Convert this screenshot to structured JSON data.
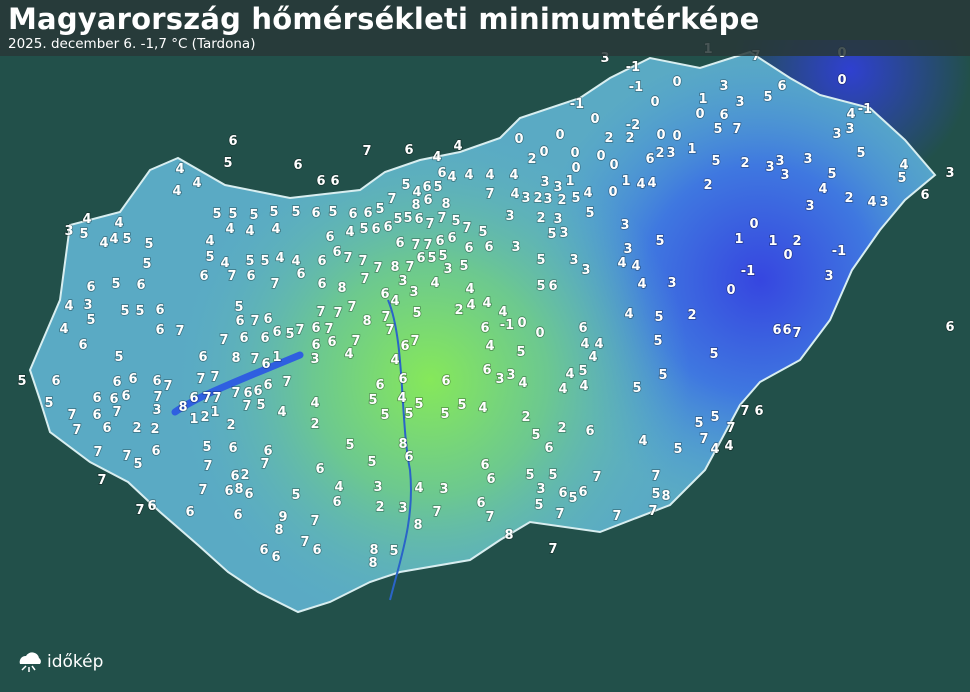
{
  "header": {
    "title": "Magyarország hőmérsékleti minimumtérképe",
    "subtitle": "2025. december 6.  -1,7 °C (Tardona)"
  },
  "logo": {
    "text": "időkép",
    "icon": "cloud-sun-icon"
  },
  "colors": {
    "background": "#1f4a44",
    "warm": "#7fe05a",
    "mid": "#5fb8c8",
    "cold": "#3a4fe0",
    "label": "#ffffff"
  },
  "stations": [
    "3",
    "1",
    "7",
    "0",
    "0",
    "-1",
    "-1",
    "0",
    "3",
    "5",
    "6",
    "-1",
    "0",
    "0",
    "1",
    "0",
    "6",
    "3",
    "4",
    "-1",
    "0",
    "0",
    "-2",
    "2",
    "2",
    "0",
    "0",
    "5",
    "7",
    "3",
    "3",
    "5",
    "4",
    "6",
    "4",
    "7",
    "2",
    "0",
    "0",
    "0",
    "0",
    "0",
    "6",
    "2",
    "3",
    "1",
    "5",
    "2",
    "3",
    "3",
    "3",
    "3",
    "5",
    "4",
    "5",
    "3",
    "6",
    "6",
    "5",
    "6",
    "6",
    "6",
    "4",
    "4",
    "4",
    "6",
    "4",
    "4",
    "4",
    "4",
    "5",
    "4",
    "6",
    "5",
    "3",
    "3",
    "1",
    "4",
    "0",
    "1",
    "4",
    "4",
    "2",
    "4",
    "2",
    "4",
    "3",
    "5",
    "5",
    "5",
    "5",
    "5",
    "6",
    "5",
    "6",
    "6",
    "5",
    "7",
    "8",
    "6",
    "8",
    "7",
    "4",
    "3",
    "2",
    "3",
    "2",
    "5",
    "5",
    "3",
    "2",
    "3",
    "3",
    "3",
    "4",
    "4",
    "3",
    "5",
    "4",
    "4",
    "5",
    "5",
    "4",
    "4",
    "4",
    "4",
    "6",
    "4",
    "5",
    "6",
    "6",
    "5",
    "5",
    "6",
    "7",
    "7",
    "5",
    "7",
    "5",
    "5",
    "3",
    "0",
    "1",
    "1",
    "2",
    "0",
    "-1",
    "3",
    "-1",
    "0",
    "6",
    "7",
    "7",
    "6",
    "6",
    "6",
    "6",
    "3",
    "3",
    "5",
    "5",
    "4",
    "5",
    "5",
    "4",
    "4",
    "6",
    "6",
    "6",
    "7",
    "7",
    "7",
    "8",
    "7",
    "6",
    "5",
    "5",
    "3",
    "5",
    "5",
    "3",
    "3",
    "4",
    "4",
    "5",
    "5",
    "6",
    "6",
    "6",
    "7",
    "6",
    "7",
    "6",
    "8",
    "7",
    "6",
    "3",
    "3",
    "4",
    "4",
    "5",
    "6",
    "4",
    "3",
    "4",
    "3",
    "5",
    "5",
    "6",
    "5",
    "7",
    "6",
    "7",
    "7",
    "7",
    "8",
    "4",
    "5",
    "2",
    "4",
    "4",
    "4",
    "4",
    "5",
    "2",
    "4",
    "5",
    "6",
    "6",
    "7",
    "6",
    "7",
    "6",
    "6",
    "6",
    "5",
    "7",
    "6",
    "7",
    "6",
    "6",
    "7",
    "7",
    "6",
    "7",
    "7",
    "6",
    "-1",
    "0",
    "0",
    "6",
    "4",
    "4",
    "5",
    "6",
    "7",
    "6",
    "6",
    "5",
    "6",
    "8",
    "7",
    "6",
    "1",
    "3",
    "4",
    "4",
    "4",
    "5",
    "4",
    "5",
    "5",
    "6",
    "6",
    "6",
    "6",
    "7",
    "7",
    "7",
    "7",
    "6",
    "6",
    "6",
    "7",
    "6",
    "6",
    "6",
    "6",
    "3",
    "3",
    "4",
    "4",
    "4",
    "4",
    "5",
    "5",
    "5",
    "5",
    "6",
    "6",
    "6",
    "7",
    "6",
    "7",
    "7",
    "8",
    "7",
    "5",
    "4",
    "5",
    "4",
    "5",
    "5",
    "5",
    "4",
    "7",
    "6",
    "7",
    "3",
    "1",
    "2",
    "1",
    "4",
    "5",
    "5",
    "5",
    "5",
    "7",
    "6",
    "7",
    "6",
    "2",
    "2",
    "2",
    "2",
    "2",
    "2",
    "6",
    "7",
    "7",
    "4",
    "4",
    "5",
    "4",
    "5",
    "5",
    "8",
    "7",
    "7",
    "6",
    "5",
    "5",
    "6",
    "6",
    "7",
    "6",
    "6",
    "7",
    "7",
    "6",
    "2",
    "6",
    "5",
    "6",
    "6",
    "5",
    "5",
    "7",
    "8",
    "7",
    "6",
    "6",
    "5",
    "4",
    "3",
    "4",
    "3",
    "3",
    "6",
    "5",
    "6",
    "7",
    "5",
    "8",
    "7",
    "6",
    "6",
    "6",
    "6",
    "2",
    "3",
    "6",
    "7",
    "5",
    "7",
    "7",
    "7",
    "9",
    "8",
    "7",
    "7",
    "8",
    "8",
    "7",
    "6",
    "6",
    "6",
    "8",
    "8",
    "5",
    "7"
  ]
}
